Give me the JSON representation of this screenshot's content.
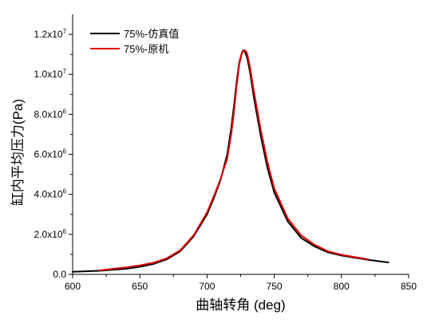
{
  "chart_data": {
    "type": "line",
    "title": "",
    "xlabel": "曲轴转角 (deg)",
    "ylabel": "缸内平均压力(Pa)",
    "xlim": [
      600,
      850
    ],
    "ylim": [
      0,
      13000000
    ],
    "x_ticks": [
      600,
      650,
      700,
      750,
      800,
      850
    ],
    "y_ticks": [
      0,
      2000000,
      4000000,
      6000000,
      8000000,
      10000000,
      12000000
    ],
    "x_tick_labels": [
      "600",
      "650",
      "700",
      "750",
      "800",
      "850"
    ],
    "y_tick_labels": [
      {
        "value": 0,
        "base": "0.0",
        "exp": ""
      },
      {
        "value": 2000000,
        "base": "2.0x10",
        "exp": "6"
      },
      {
        "value": 4000000,
        "base": "4.0x10",
        "exp": "6"
      },
      {
        "value": 6000000,
        "base": "6.0x10",
        "exp": "6"
      },
      {
        "value": 8000000,
        "base": "8.0x10",
        "exp": "6"
      },
      {
        "value": 10000000,
        "base": "1.0x10",
        "exp": "7"
      },
      {
        "value": 12000000,
        "base": "1.2x10",
        "exp": "7"
      }
    ],
    "legend_position": "top-left",
    "grid": false,
    "series": [
      {
        "name": "75%-仿真值",
        "color": "#000000",
        "x": [
          600,
          620,
          640,
          650,
          660,
          670,
          680,
          690,
          700,
          705,
          710,
          715,
          718,
          720,
          722,
          724,
          726,
          727,
          728,
          729,
          730,
          732,
          735,
          740,
          745,
          750,
          760,
          770,
          780,
          790,
          800,
          810,
          820,
          830,
          835
        ],
        "y": [
          130000,
          180000,
          280000,
          380000,
          520000,
          750000,
          1150000,
          1900000,
          3000000,
          3800000,
          4700000,
          6000000,
          7300000,
          8400000,
          9600000,
          10600000,
          11100000,
          11200000,
          11150000,
          11000000,
          10800000,
          10100000,
          8800000,
          6900000,
          5300000,
          4100000,
          2650000,
          1820000,
          1400000,
          1100000,
          940000,
          830000,
          730000,
          640000,
          600000
        ]
      },
      {
        "name": "75%-原机",
        "color": "#e00000",
        "x": [
          620,
          630,
          640,
          650,
          660,
          670,
          680,
          690,
          700,
          705,
          710,
          715,
          718,
          720,
          722,
          724,
          726,
          728,
          729,
          730,
          732,
          735,
          740,
          745,
          750,
          760,
          770,
          780,
          790,
          800,
          810,
          820
        ],
        "y": [
          200000,
          280000,
          350000,
          450000,
          580000,
          800000,
          1200000,
          1950000,
          3100000,
          3900000,
          4750000,
          5800000,
          7000000,
          8100000,
          9400000,
          10500000,
          11100000,
          11200000,
          11150000,
          11000000,
          10350000,
          9100000,
          7200000,
          5600000,
          4300000,
          2800000,
          1950000,
          1480000,
          1150000,
          980000,
          860000,
          750000
        ]
      }
    ]
  }
}
